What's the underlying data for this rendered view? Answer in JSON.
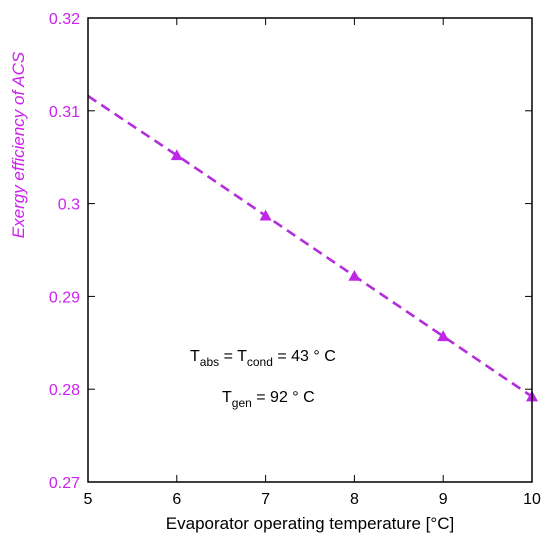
{
  "chart_data": {
    "type": "line",
    "xlabel": "Evaporator operating temperature [°C]",
    "ylabel": "Exergy efficiency of ACS",
    "xlim": [
      5,
      10
    ],
    "ylim": [
      0.27,
      0.32
    ],
    "x_ticks": [
      "5",
      "6",
      "7",
      "8",
      "9",
      "10"
    ],
    "y_ticks": [
      "0.27",
      "0.28",
      "0.29",
      "0.3",
      "0.31",
      "0.32"
    ],
    "grid": false,
    "series": [
      {
        "marker": "triangle",
        "line_style": "dashed",
        "line_start": [
          5,
          0.3116
        ],
        "x": [
          6,
          7,
          8,
          9,
          10
        ],
        "y": [
          0.3052,
          0.2987,
          0.2922,
          0.2857,
          0.2792
        ]
      }
    ],
    "annotations": [
      {
        "parts": [
          [
            "T",
            "normal"
          ],
          [
            "abs",
            "sub"
          ],
          [
            " = T",
            "normal"
          ],
          [
            "cond",
            "sub"
          ],
          [
            " = 43 ° C",
            "normal"
          ]
        ]
      },
      {
        "parts": [
          [
            "T",
            "normal"
          ],
          [
            "gen",
            "sub"
          ],
          [
            " = 92 ° C",
            "normal"
          ]
        ]
      }
    ],
    "colors": {
      "series": "#b32ddb",
      "marker": "#c026e8",
      "y_axis_text": "#cc22ee",
      "x_axis_text": "#000000",
      "frame": "#000000"
    }
  }
}
